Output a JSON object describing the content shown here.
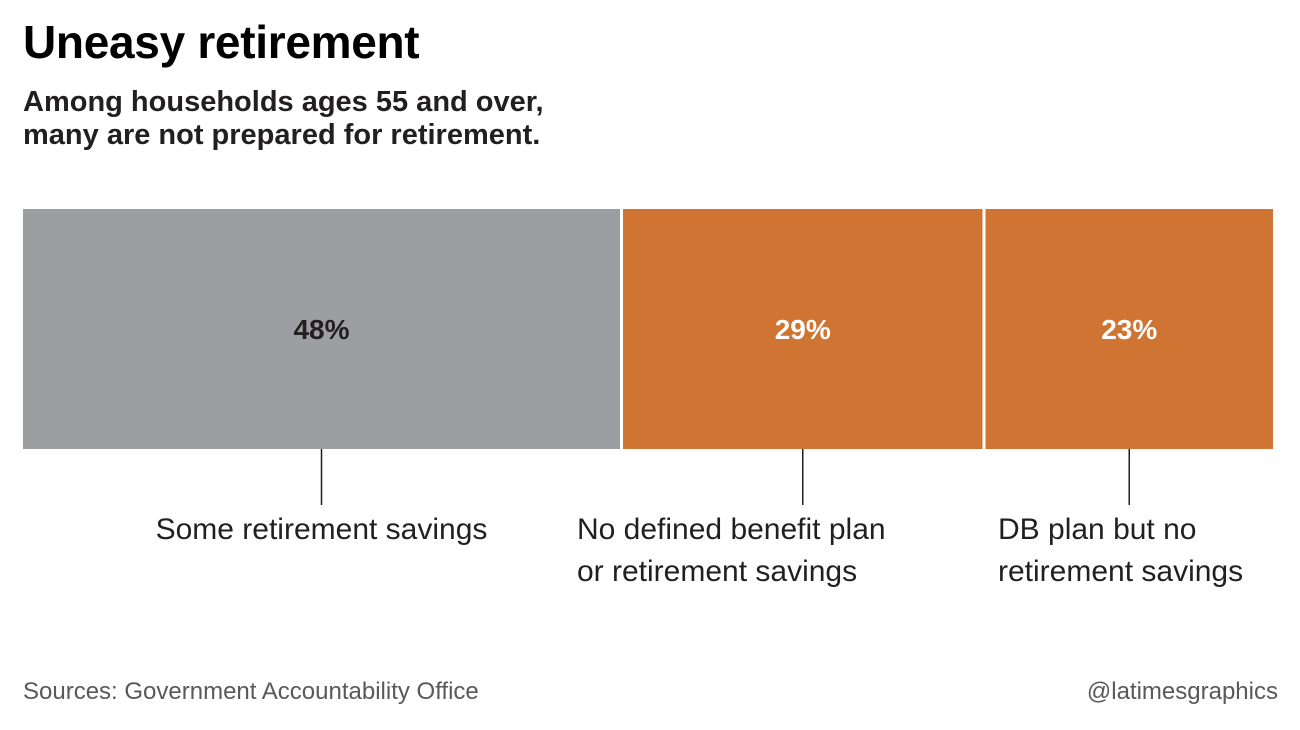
{
  "header": {
    "title": "Uneasy retirement",
    "subtitle_lines": [
      "Among households ages 55 and over,",
      "many are not prepared for retirement."
    ]
  },
  "chart_data": {
    "type": "bar",
    "orientation": "horizontal-stacked",
    "title": "Uneasy retirement",
    "subtitle": "Among households ages 55 and over, many are not prepared for retirement.",
    "unit": "%",
    "total": 100,
    "categories": [
      "Some retirement savings",
      "No defined benefit plan or retirement savings",
      "DB plan but no retirement savings"
    ],
    "category_label_lines": [
      [
        "Some retirement savings"
      ],
      [
        "No defined benefit plan",
        "or retirement savings"
      ],
      [
        "DB plan but no",
        "retirement savings"
      ]
    ],
    "values": [
      48,
      29,
      23
    ],
    "value_labels": [
      "48%",
      "29%",
      "23%"
    ],
    "colors": [
      "#9d9ea2",
      "#d07434",
      "#d07434"
    ],
    "label_colors": [
      "#231f20",
      "#ffffff",
      "#ffffff"
    ],
    "separator_color": "#ffffff",
    "leader_color": "#231f20"
  },
  "footer": {
    "source": "Sources: Government Accountability Office",
    "credit": "@latimesgraphics"
  }
}
